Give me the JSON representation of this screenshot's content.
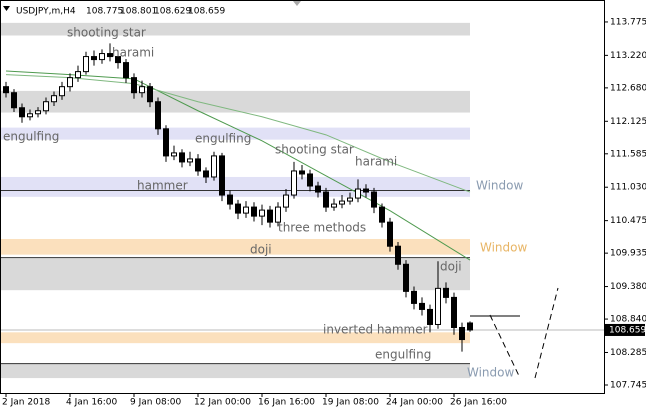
{
  "header": {
    "symbol": "USDJPY,m,H4",
    "open": 108.775,
    "high": 108.801,
    "low": 108.629,
    "close": 108.659
  },
  "chart_data": {
    "type": "candlestick",
    "categories": [
      "2 Jan 2018",
      null,
      null,
      null,
      null,
      null,
      null,
      null,
      "4 Jan 16:00",
      null,
      null,
      null,
      null,
      null,
      null,
      null,
      "9 Jan 08:00",
      null,
      null,
      null,
      null,
      null,
      null,
      null,
      "12 Jan 00:00",
      null,
      null,
      null,
      null,
      null,
      null,
      null,
      "16 Jan 16:00",
      null,
      null,
      null,
      null,
      null,
      null,
      null,
      "19 Jan 08:00",
      null,
      null,
      null,
      null,
      null,
      null,
      null,
      "24 Jan 00:00",
      null,
      null,
      null,
      null,
      null,
      null,
      null,
      "26 Jan 16:00",
      null,
      null
    ],
    "open": [
      112.7,
      112.6,
      112.35,
      112.2,
      112.25,
      112.3,
      112.45,
      112.55,
      112.7,
      112.85,
      112.95,
      113.2,
      113.15,
      113.25,
      113.2,
      113.1,
      112.85,
      112.6,
      112.7,
      112.45,
      112.0,
      111.55,
      111.6,
      111.45,
      111.5,
      111.3,
      111.2,
      111.55,
      110.9,
      110.75,
      110.6,
      110.7,
      110.55,
      110.65,
      110.45,
      110.7,
      110.9,
      111.3,
      111.25,
      111.05,
      110.95,
      110.7,
      110.75,
      110.8,
      110.85,
      111.0,
      110.95,
      110.7,
      110.45,
      110.05,
      109.75,
      109.3,
      109.1,
      109.0,
      108.75,
      109.35,
      109.2,
      108.7,
      108.775
    ],
    "high": [
      112.78,
      112.66,
      112.42,
      112.32,
      112.36,
      112.52,
      112.62,
      112.78,
      112.92,
      113.05,
      113.28,
      113.3,
      113.32,
      113.42,
      113.3,
      113.16,
      112.92,
      112.8,
      112.76,
      112.52,
      112.06,
      111.72,
      111.66,
      111.62,
      111.58,
      111.36,
      111.62,
      111.6,
      110.98,
      110.82,
      110.8,
      110.78,
      110.74,
      110.72,
      110.78,
      111.0,
      111.45,
      111.4,
      111.32,
      111.12,
      111.02,
      110.84,
      110.9,
      110.94,
      111.16,
      111.08,
      111.02,
      110.76,
      110.52,
      110.12,
      109.82,
      109.38,
      109.2,
      109.08,
      109.8,
      109.45,
      109.28,
      108.78,
      108.801
    ],
    "low": [
      112.52,
      112.28,
      112.1,
      112.14,
      112.19,
      112.24,
      112.38,
      112.48,
      112.62,
      112.78,
      112.9,
      113.05,
      113.08,
      113.12,
      113.0,
      112.76,
      112.5,
      112.52,
      112.36,
      111.9,
      111.45,
      111.48,
      111.36,
      111.38,
      111.22,
      111.1,
      111.14,
      110.8,
      110.66,
      110.5,
      110.52,
      110.46,
      110.4,
      110.36,
      110.38,
      110.62,
      110.84,
      111.16,
      110.96,
      110.86,
      110.62,
      110.64,
      110.68,
      110.74,
      110.78,
      110.86,
      110.6,
      110.36,
      109.96,
      109.66,
      109.2,
      109.0,
      108.9,
      108.62,
      108.68,
      109.1,
      108.58,
      108.3,
      108.629
    ],
    "close": [
      112.6,
      112.35,
      112.2,
      112.25,
      112.3,
      112.45,
      112.55,
      112.7,
      112.85,
      112.95,
      113.2,
      113.15,
      113.25,
      113.2,
      113.1,
      112.85,
      112.6,
      112.7,
      112.45,
      112.0,
      111.55,
      111.6,
      111.45,
      111.5,
      111.3,
      111.2,
      111.55,
      110.9,
      110.75,
      110.6,
      110.7,
      110.55,
      110.65,
      110.45,
      110.7,
      110.9,
      111.3,
      111.25,
      111.05,
      110.95,
      110.7,
      110.75,
      110.8,
      110.85,
      111.0,
      110.95,
      110.7,
      110.45,
      110.05,
      109.75,
      109.3,
      109.1,
      109.0,
      108.75,
      109.35,
      109.2,
      108.7,
      108.5,
      108.659
    ],
    "up_color": "#ffffff",
    "down_color": "#000000",
    "moving_averages": [
      {
        "color": "#4f9a4f",
        "x": [
          0,
          8,
          16,
          24,
          32,
          40,
          48,
          58
        ],
        "values": [
          112.96,
          112.9,
          112.83,
          112.3,
          111.8,
          111.22,
          110.64,
          109.82
        ]
      },
      {
        "color": "#7fb87f",
        "x": [
          0,
          8,
          16,
          24,
          32,
          40,
          48,
          58
        ],
        "values": [
          112.9,
          112.85,
          112.75,
          112.45,
          112.2,
          111.9,
          111.45,
          110.95
        ]
      }
    ],
    "zones": [
      {
        "top": 113.76,
        "bottom": 113.55,
        "color": "#d9d9d9"
      },
      {
        "top": 112.63,
        "bottom": 112.27,
        "color": "#d9d9d9"
      },
      {
        "top": 112.02,
        "bottom": 111.82,
        "color": "#e1e1f6"
      },
      {
        "top": 111.2,
        "bottom": 110.87,
        "color": "#e1e1f6"
      },
      {
        "top": 110.17,
        "bottom": 109.91,
        "color": "#fbe0bd"
      },
      {
        "top": 109.85,
        "bottom": 109.32,
        "color": "#d9d9d9"
      },
      {
        "top": 108.62,
        "bottom": 108.44,
        "color": "#fbe0bd"
      },
      {
        "top": 108.1,
        "bottom": 107.86,
        "color": "#d9d9d9"
      }
    ],
    "levels": [
      110.975,
      109.86,
      108.1
    ],
    "annotations": [
      "shooting star",
      "harami",
      "engulfing",
      "engulfing",
      "shooting star",
      "harami",
      "hammer",
      "three methods",
      "doji",
      "doji",
      "inverted hammer",
      "engulfing",
      "Window",
      "Window",
      "Window"
    ],
    "ylim": [
      107.612,
      114.123
    ],
    "yticks": [
      113.775,
      {
        "value": 113.22,
        "label": "113.220"
      },
      {
        "value": 112.68,
        "label": "112.680"
      },
      112.125,
      111.585,
      {
        "value": 111.03,
        "label": "111.030"
      },
      110.475,
      109.935,
      {
        "value": 109.38,
        "label": "109.380"
      },
      {
        "value": 108.84,
        "label": "108.840"
      },
      108.285,
      107.745
    ],
    "grid": false
  }
}
